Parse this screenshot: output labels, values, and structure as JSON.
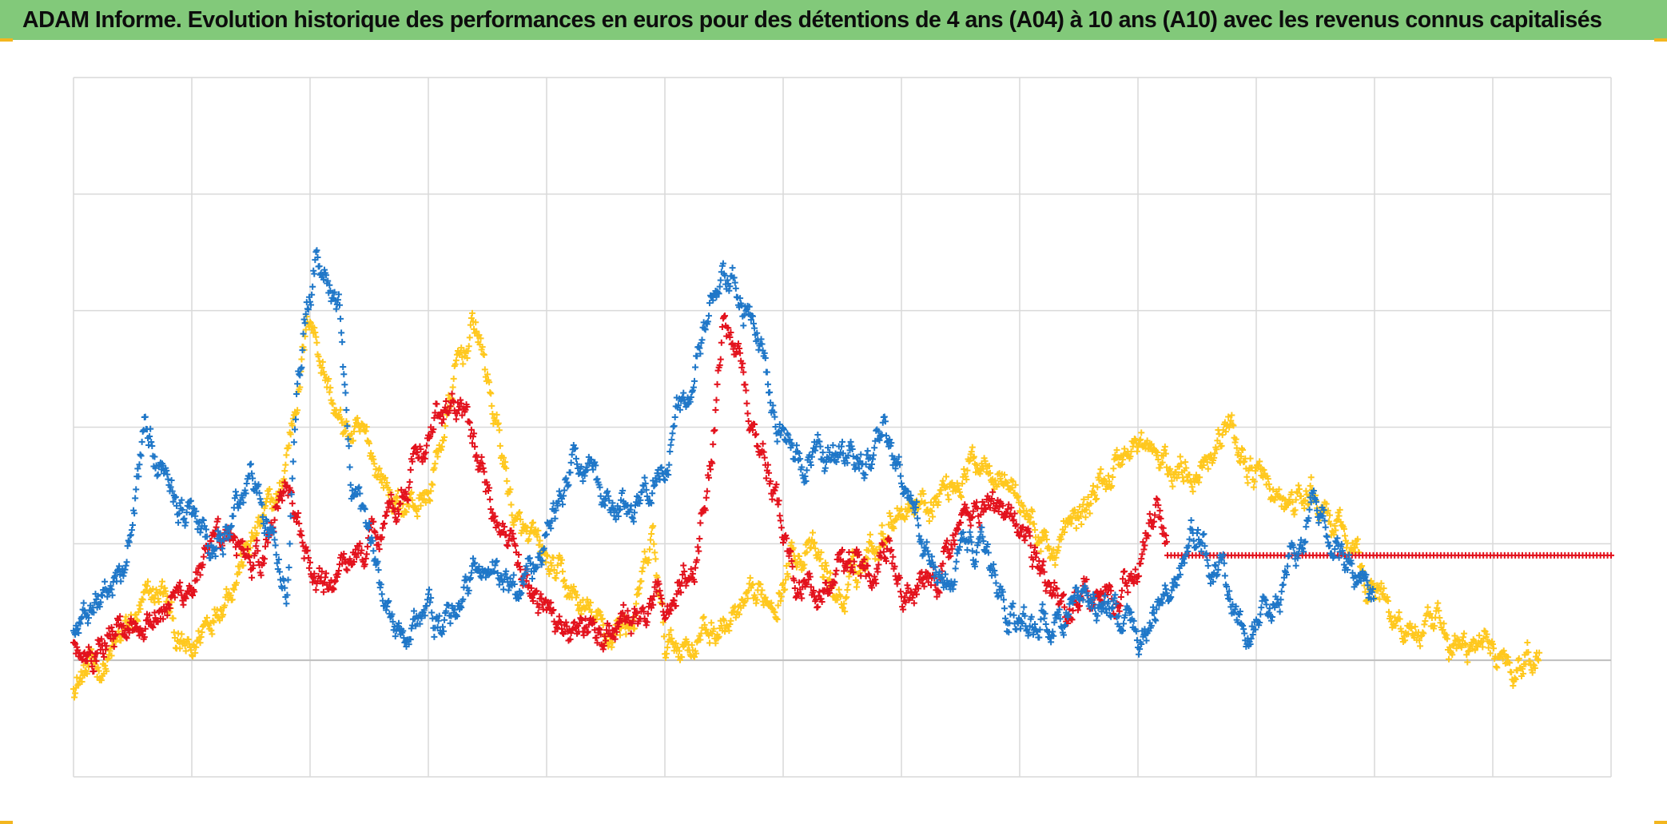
{
  "title": "ADAM Informe. Evolution historique des performances en euros pour des détentions de 4 ans (A04) à 10 ans (A10) avec les revenus connus capitalisés",
  "colors": {
    "title_background": "#82c97a",
    "corner_accent": "#f3b61f",
    "grid": "#d9d9d9",
    "baseline": "#bfbfbf"
  },
  "chart_data": {
    "type": "scatter",
    "marker": "cross",
    "title": "ADAM Informe. Evolution historique des performances en euros pour des détentions de 4 ans (A04) à 10 ans (A10) avec les revenus connus capitalisés",
    "xlabel": "",
    "ylabel": "",
    "x_tick_labels": [],
    "y_tick_labels": [],
    "xlim": [
      0,
      13
    ],
    "ylim": [
      -5,
      25
    ],
    "grid": true,
    "baseline": 0,
    "series": [
      {
        "name": "blue",
        "color": "#1f77c8",
        "x": [
          0.0,
          0.25,
          0.45,
          0.55,
          0.6,
          0.75,
          0.9,
          1.1,
          1.25,
          1.5,
          1.65,
          1.8,
          1.9,
          2.05,
          2.25,
          2.35,
          2.5,
          2.6,
          2.75,
          3.0,
          3.1,
          3.25,
          3.35,
          3.5,
          3.75,
          4.0,
          4.25,
          4.5,
          4.75,
          5.0,
          5.25,
          5.4,
          5.6,
          5.8,
          6.0,
          6.1,
          6.35,
          6.5,
          6.75,
          6.85,
          7.0,
          7.25,
          7.4,
          7.55,
          7.75,
          8.0,
          8.25,
          8.5,
          8.75,
          9.0,
          9.25,
          9.5,
          9.75,
          9.9,
          10.0,
          10.25,
          10.5,
          10.65,
          10.8,
          11.0
        ],
        "y": [
          1.5,
          3.0,
          4.5,
          7.5,
          10.0,
          8.0,
          7.0,
          5.0,
          5.0,
          8.0,
          6.0,
          3.5,
          12.5,
          17.5,
          15.0,
          7.0,
          5.0,
          3.0,
          1.5,
          2.0,
          1.0,
          2.5,
          3.5,
          4.0,
          3.0,
          5.5,
          8.5,
          7.0,
          6.0,
          9.0,
          12.0,
          15.5,
          16.0,
          13.5,
          10.0,
          8.5,
          8.5,
          9.0,
          8.5,
          10.0,
          7.5,
          4.0,
          3.0,
          5.5,
          3.5,
          1.5,
          1.8,
          3.0,
          2.0,
          1.0,
          3.0,
          5.5,
          3.0,
          1.0,
          1.5,
          3.0,
          7.0,
          5.0,
          4.0,
          2.0
        ]
      },
      {
        "name": "red",
        "color": "#e3121d",
        "x": [
          0.0,
          0.2,
          0.4,
          0.55,
          0.85,
          1.0,
          1.25,
          1.45,
          1.6,
          1.8,
          2.0,
          2.15,
          2.35,
          2.5,
          3.05,
          3.25,
          3.5,
          3.75,
          4.0,
          4.25,
          4.5,
          4.75,
          5.0,
          5.25,
          5.4,
          5.5,
          6.1,
          6.35,
          6.5,
          6.7,
          6.9,
          7.0,
          7.25,
          7.5,
          7.75,
          8.0,
          8.15,
          8.4,
          8.6,
          8.8,
          9.0,
          9.15,
          9.25
        ],
        "y": [
          0.5,
          1.0,
          1.5,
          2.0,
          2.5,
          3.5,
          4.5,
          5.0,
          4.0,
          8.0,
          3.5,
          3.0,
          4.5,
          5.0,
          10.0,
          11.0,
          7.5,
          4.0,
          2.0,
          1.5,
          1.0,
          1.5,
          2.5,
          4.0,
          9.0,
          15.5,
          3.5,
          3.0,
          4.5,
          4.0,
          6.0,
          2.5,
          3.0,
          6.0,
          7.0,
          5.5,
          4.0,
          2.0,
          3.0,
          2.5,
          4.0,
          6.5,
          5.5
        ],
        "flat_segment": {
          "x_start": 9.25,
          "x_end": 13.0,
          "y": 4.5
        }
      },
      {
        "name": "yellow",
        "color": "#ffc81e",
        "x": [
          0.0,
          0.15,
          0.3,
          0.5,
          0.75,
          0.9,
          1.0,
          1.1,
          1.25,
          1.5,
          1.75,
          1.9,
          2.0,
          2.1,
          2.25,
          2.5,
          2.75,
          3.0,
          3.25,
          3.4,
          3.6,
          3.75,
          4.0,
          4.25,
          4.5,
          4.75,
          4.9,
          5.0,
          5.25,
          5.5,
          5.75,
          6.0,
          6.1,
          6.25,
          6.5,
          6.75,
          7.0,
          7.25,
          7.5,
          7.75,
          8.0,
          8.25,
          8.5,
          8.75,
          8.9,
          9.0,
          9.25,
          9.5,
          9.75,
          10.0,
          10.25,
          10.5,
          10.75,
          11.0,
          11.25,
          11.5,
          11.75,
          12.0,
          12.15,
          12.25,
          12.4
        ],
        "y": [
          -0.8,
          -0.5,
          0.0,
          1.5,
          3.0,
          0.5,
          0.0,
          1.5,
          3.0,
          5.0,
          7.0,
          12.0,
          15.0,
          13.0,
          10.0,
          9.0,
          6.5,
          7.0,
          12.5,
          14.5,
          9.5,
          5.5,
          4.0,
          2.5,
          1.0,
          2.0,
          5.0,
          0.5,
          1.0,
          1.5,
          2.0,
          3.5,
          5.0,
          4.5,
          2.5,
          5.0,
          7.0,
          7.0,
          8.0,
          9.0,
          7.0,
          4.5,
          6.0,
          8.0,
          9.0,
          9.5,
          8.0,
          8.5,
          10.0,
          8.0,
          6.5,
          7.0,
          5.0,
          3.0,
          1.5,
          1.0,
          0.5,
          0.5,
          0.0,
          0.0,
          0.5
        ]
      }
    ]
  }
}
